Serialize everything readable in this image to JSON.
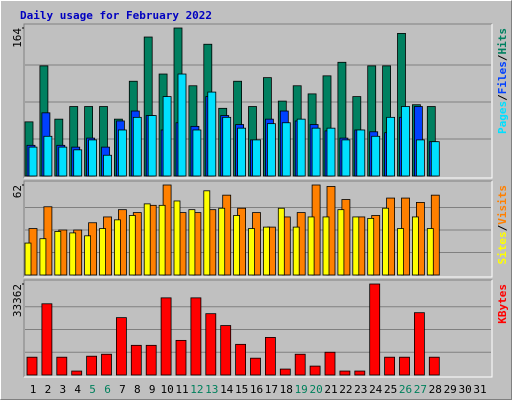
{
  "chart_data": [
    {
      "type": "bar",
      "title": "Daily usage for February 2022",
      "title_color": "#0000c0",
      "ylim": [
        0,
        164
      ],
      "yticks": [
        164
      ],
      "grid_divisions": 4,
      "separator": "/",
      "series": [
        {
          "name": "Hits",
          "color": "#008060",
          "values": [
            60,
            122,
            63,
            77,
            77,
            77,
            63,
            105,
            154,
            113,
            164,
            100,
            146,
            75,
            105,
            77,
            109,
            83,
            100,
            91,
            111,
            126,
            88,
            122,
            122,
            158,
            79,
            77,
            0,
            0,
            0
          ]
        },
        {
          "name": "Files",
          "color": "#0040ff",
          "values": [
            34,
            70,
            34,
            32,
            42,
            32,
            61,
            72,
            67,
            51,
            59,
            55,
            88,
            67,
            57,
            40,
            63,
            72,
            61,
            57,
            50,
            42,
            51,
            49,
            48,
            65,
            77,
            38,
            0,
            0,
            0
          ]
        },
        {
          "name": "Pages",
          "color": "#00e0ff",
          "values": [
            32,
            44,
            32,
            29,
            40,
            23,
            51,
            65,
            67,
            88,
            113,
            51,
            93,
            65,
            53,
            40,
            58,
            59,
            63,
            53,
            53,
            40,
            51,
            44,
            65,
            77,
            40,
            38,
            0,
            0,
            0
          ]
        }
      ]
    },
    {
      "type": "bar",
      "ylim": [
        0,
        62
      ],
      "yticks": [
        62
      ],
      "grid_divisions": 4,
      "separator": "/",
      "series": [
        {
          "name": "Visits",
          "color": "#ff8000",
          "values": [
            32,
            47,
            31,
            31,
            36,
            40,
            45,
            43,
            48,
            62,
            43,
            43,
            45,
            55,
            46,
            43,
            33,
            40,
            43,
            62,
            61,
            52,
            40,
            41,
            53,
            53,
            50,
            55,
            0,
            0,
            0
          ]
        },
        {
          "name": "Sites",
          "color": "#ffff00",
          "values": [
            22,
            25,
            30,
            29,
            27,
            32,
            38,
            41,
            49,
            48,
            51,
            45,
            58,
            46,
            41,
            32,
            33,
            46,
            33,
            40,
            40,
            45,
            40,
            39,
            46,
            32,
            40,
            32,
            0,
            0,
            0
          ]
        }
      ]
    },
    {
      "type": "bar",
      "ylim": [
        0,
        33362
      ],
      "yticks": [
        33362
      ],
      "grid_divisions": 4,
      "series": [
        {
          "name": "KBytes",
          "color": "#ff0000",
          "values": [
            6527,
            26110,
            6527,
            1450,
            6890,
            7615,
            21032,
            10879,
            10879,
            28285,
            12692,
            28285,
            22483,
            18132,
            11242,
            6165,
            13780,
            2176,
            7615,
            3264,
            8341,
            1450,
            1450,
            33362,
            6527,
            6527,
            22846,
            6527,
            0,
            0,
            0
          ]
        }
      ],
      "categories": [
        "1",
        "2",
        "3",
        "4",
        "5",
        "6",
        "7",
        "8",
        "9",
        "10",
        "11",
        "12",
        "13",
        "14",
        "15",
        "16",
        "17",
        "18",
        "19",
        "20",
        "21",
        "22",
        "23",
        "24",
        "25",
        "26",
        "27",
        "28",
        "29",
        "30",
        "31"
      ],
      "category_colors": [
        "#000000",
        "#000000",
        "#000000",
        "#000000",
        "#00805c",
        "#00805c",
        "#000000",
        "#000000",
        "#000000",
        "#000000",
        "#000000",
        "#00805c",
        "#00805c",
        "#000000",
        "#000000",
        "#000000",
        "#000000",
        "#000000",
        "#00805c",
        "#00805c",
        "#000000",
        "#000000",
        "#000000",
        "#000000",
        "#000000",
        "#00805c",
        "#00805c",
        "#000000",
        "#000000",
        "#000000",
        "#000000"
      ]
    }
  ]
}
